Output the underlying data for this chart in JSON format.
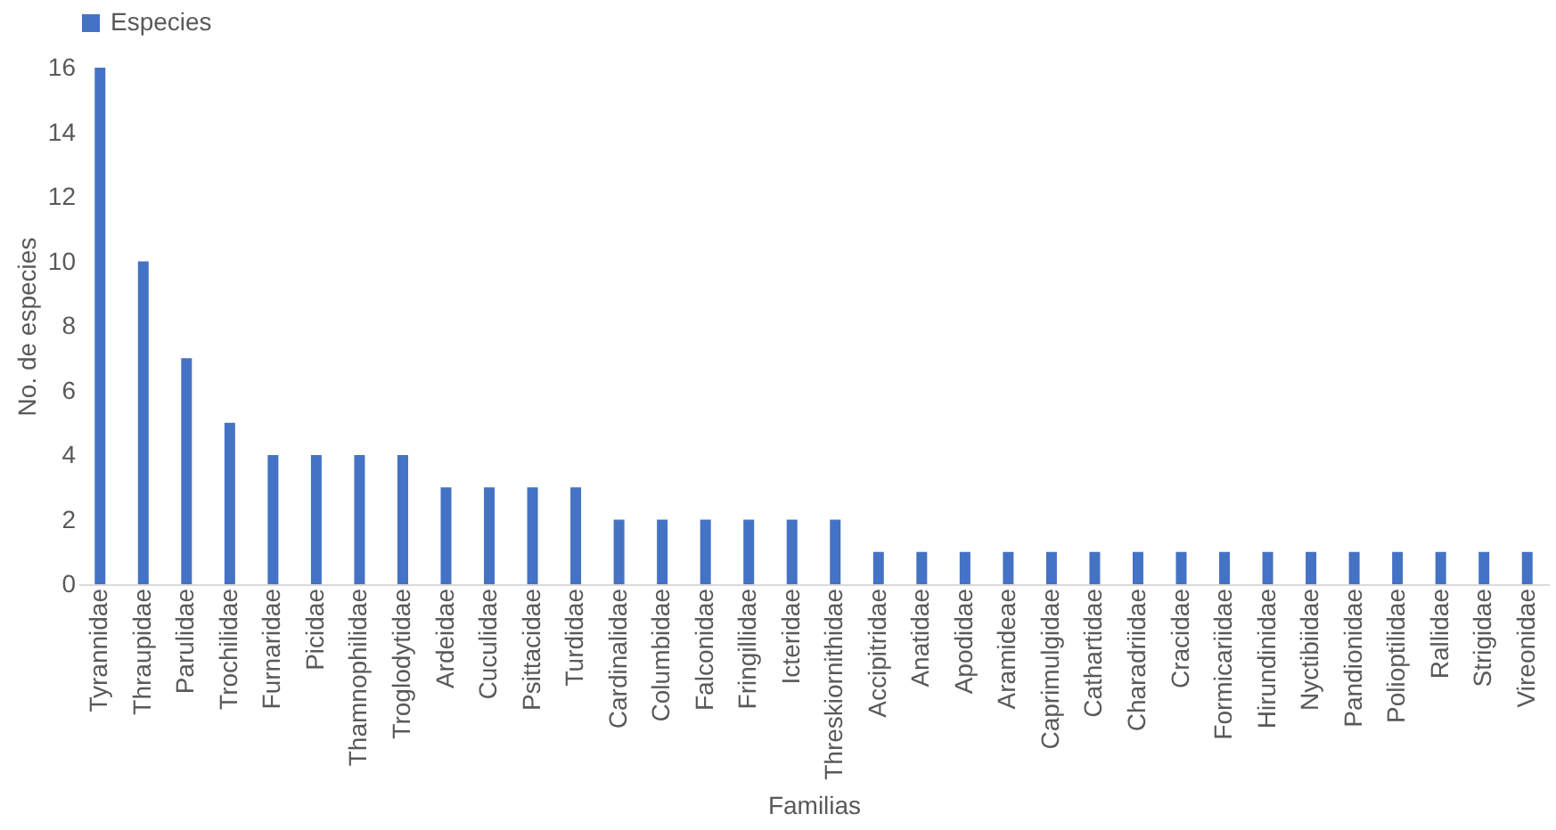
{
  "chart_data": {
    "type": "bar",
    "xlabel": "Familias",
    "ylabel": "No. de especies",
    "categories": [
      "Tyrannidae",
      "Thraupidae",
      "Parulidae",
      "Trochilidae",
      "Furnaridae",
      "Picidae",
      "Thamnophilidae",
      "Troglodytidae",
      "Ardeidae",
      "Cuculidae",
      "Psittacidae",
      "Turdidae",
      "Cardinalidae",
      "Columbidae",
      "Falconidae",
      "Fringillidae",
      "Icteridae",
      "Threskiornithidae",
      "Accipitridae",
      "Anatidae",
      "Apodidae",
      "Aramideae",
      "Caprimulgidae",
      "Cathartidae",
      "Charadriidae",
      "Cracidae",
      "Formicariidae",
      "Hirundinidae",
      "Nyctibiidae",
      "Pandionidae",
      "Polioptilidae",
      "Rallidae",
      "Strigidae",
      "Vireonidae"
    ],
    "series": [
      {
        "name": "Especies",
        "color": "#4472c4",
        "values": [
          16,
          10,
          7,
          5,
          4,
          4,
          4,
          4,
          3,
          3,
          3,
          3,
          2,
          2,
          2,
          2,
          2,
          2,
          1,
          1,
          1,
          1,
          1,
          1,
          1,
          1,
          1,
          1,
          1,
          1,
          1,
          1,
          1,
          1
        ]
      }
    ],
    "ylim": [
      0,
      16
    ],
    "yticks": [
      0,
      2,
      4,
      6,
      8,
      10,
      12,
      14,
      16
    ],
    "grid": false,
    "legend": "top"
  }
}
